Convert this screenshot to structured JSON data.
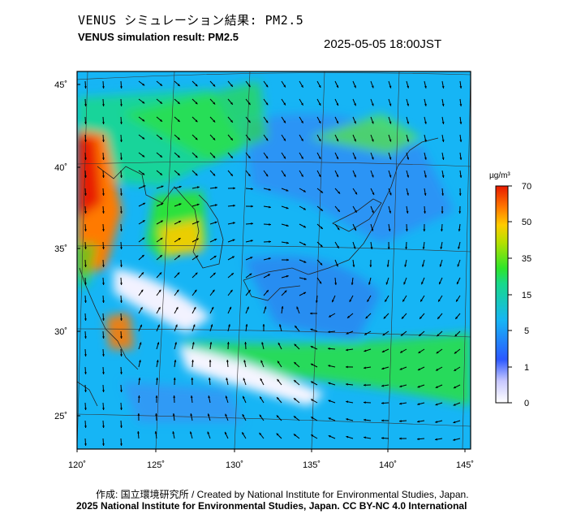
{
  "header": {
    "title_jp": "VENUS シミュレーション結果: PM2.5",
    "title_en": "VENUS simulation result: PM2.5",
    "timestamp": "2025-05-05 18:00JST"
  },
  "map": {
    "lat_ticks": [
      {
        "value": 45,
        "label": "45˚"
      },
      {
        "value": 40,
        "label": "40˚"
      },
      {
        "value": 35,
        "label": "35˚"
      },
      {
        "value": 30,
        "label": "30˚"
      },
      {
        "value": 25,
        "label": "25˚"
      }
    ],
    "lon_ticks": [
      {
        "value": 120,
        "label": "120˚"
      },
      {
        "value": 125,
        "label": "125˚"
      },
      {
        "value": 130,
        "label": "130˚"
      },
      {
        "value": 135,
        "label": "135˚"
      },
      {
        "value": 140,
        "label": "140˚"
      },
      {
        "value": 145,
        "label": "145˚"
      }
    ],
    "lat_range": [
      23,
      46.5
    ],
    "lon_range": [
      120,
      145.5
    ]
  },
  "colorbar": {
    "unit": "µg/m³",
    "ticks": [
      {
        "value": 70,
        "label": "70"
      },
      {
        "value": 50,
        "label": "50"
      },
      {
        "value": 35,
        "label": "35"
      },
      {
        "value": 15,
        "label": "15"
      },
      {
        "value": 5,
        "label": "5"
      },
      {
        "value": 1,
        "label": "1"
      },
      {
        "value": 0,
        "label": "0"
      }
    ],
    "colors": [
      "#ffffff",
      "#c8c8ff",
      "#2c58ff",
      "#16b5f5",
      "#17d98a",
      "#2ee52a",
      "#b6e000",
      "#ffcc00",
      "#ff7a00",
      "#e81a00"
    ]
  },
  "footer": {
    "credit_line": "作成: 国立環境研究所 / Created by National Institute for Environmental Studies, Japan.",
    "license_line": "2025 National Institute for Environmental Studies, Japan. CC BY-NC 4.0 International"
  }
}
